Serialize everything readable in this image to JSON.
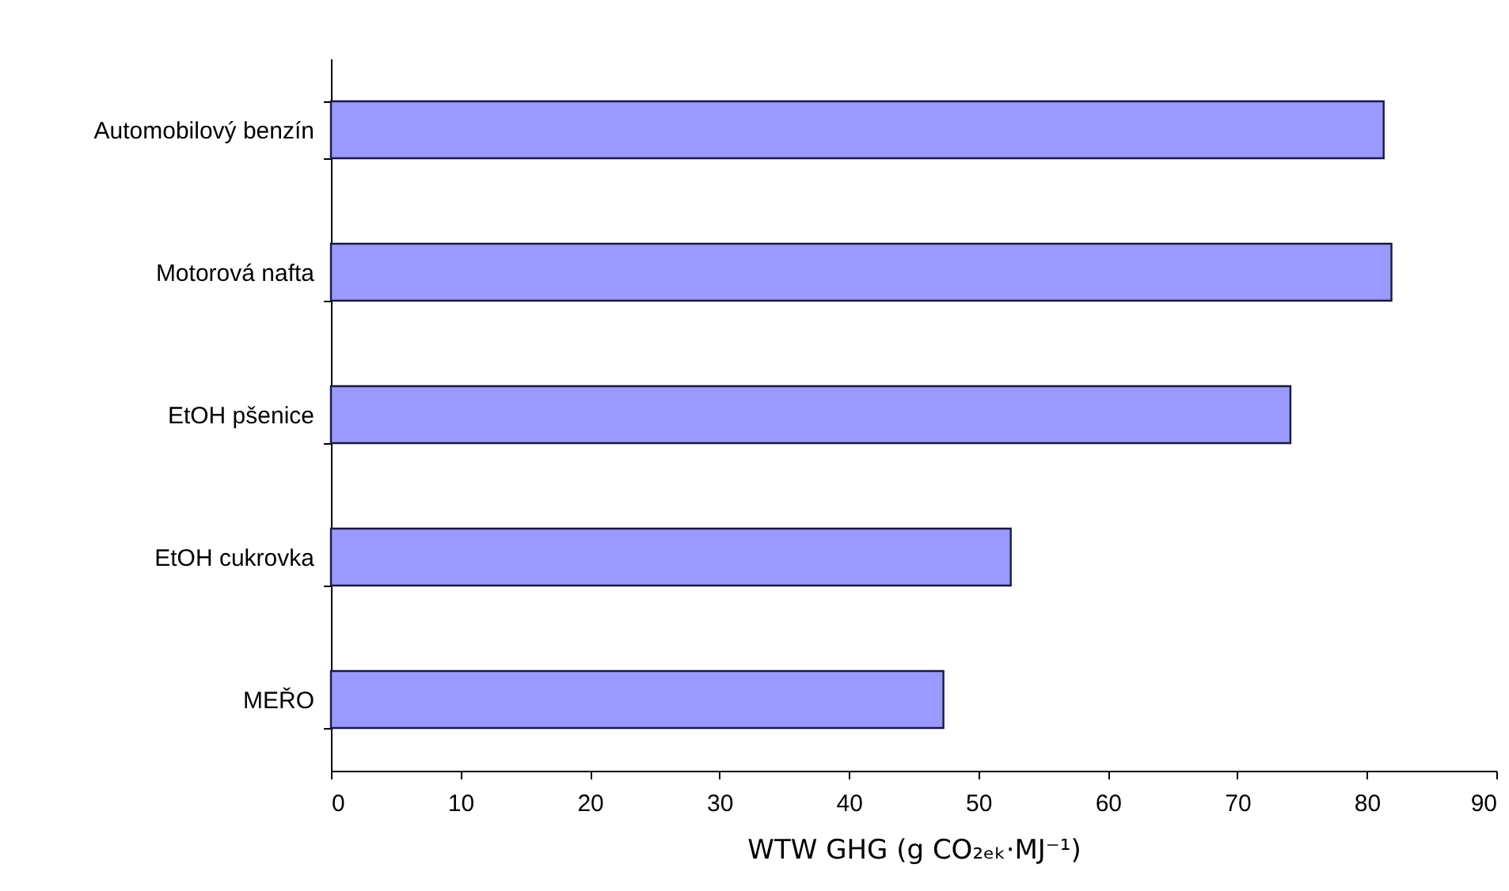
{
  "chart_data": {
    "type": "bar",
    "orientation": "horizontal",
    "categories": [
      "Automobilový benzín",
      "Motorová nafta",
      "EtOH pšenice",
      "EtOH cukrovka",
      "MEŘO"
    ],
    "values": [
      81.3,
      81.9,
      74.1,
      52.5,
      47.3
    ],
    "color": "#9999ff",
    "xlabel": "WTW GHG (g CO₂ₑₖ·MJ⁻¹)",
    "xlim": [
      0,
      90
    ],
    "xticks": [
      0,
      10,
      20,
      30,
      40,
      50,
      60,
      70,
      80,
      90
    ],
    "grid": false
  }
}
